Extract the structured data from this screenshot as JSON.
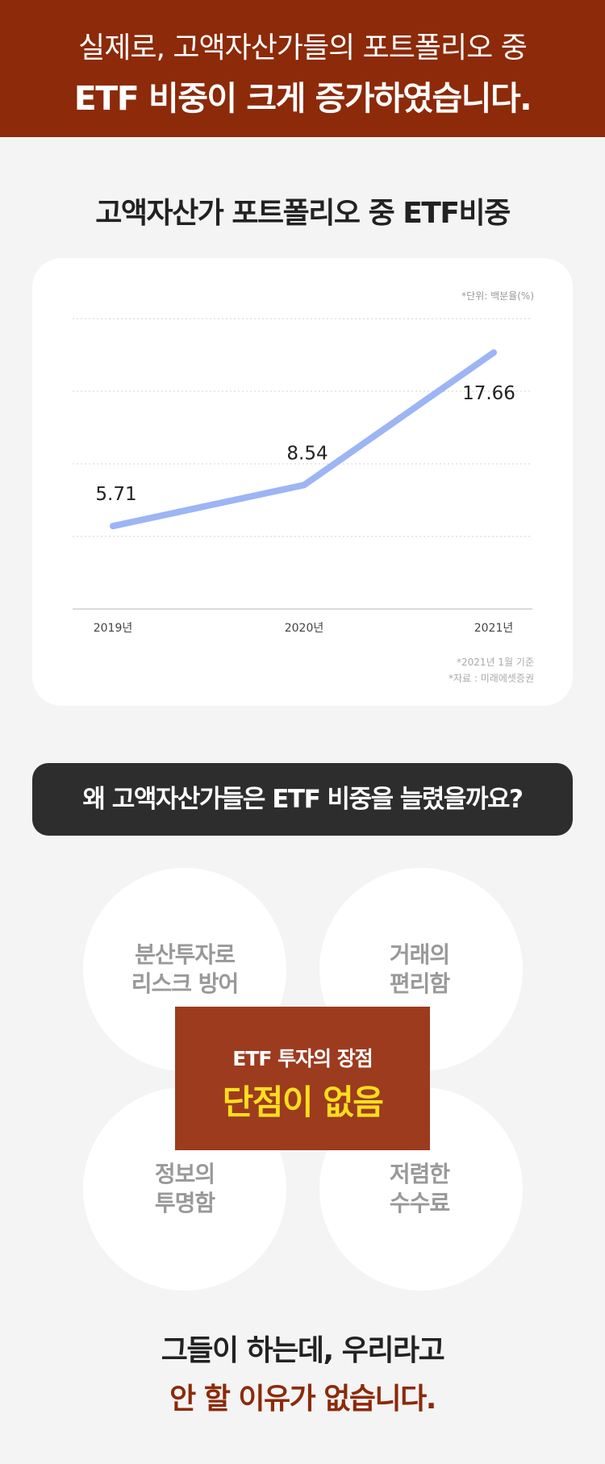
{
  "banner": {
    "line1": "실제로, 고액자산가들의 포트폴리오 중",
    "line2": "ETF 비중이 크게 증가하였습니다."
  },
  "chart_section": {
    "title": "고액자산가 포트폴리오 중 ETF비중",
    "unit_note": "*단위: 백분율(%)",
    "footnote_date": "*2021년 1월 기준",
    "footnote_source": "*자료 : 미래에셋증권"
  },
  "chart_data": {
    "type": "line",
    "title": "고액자산가 포트폴리오 중 ETF비중",
    "categories": [
      "2019년",
      "2020년",
      "2021년"
    ],
    "series": [
      {
        "values": [
          5.71,
          8.54,
          17.66
        ],
        "labels": [
          "5.71",
          "8.54",
          "17.66"
        ]
      }
    ],
    "xlabel": "",
    "ylabel": "",
    "ylim": [
      0,
      20
    ],
    "grid": true,
    "line_color": "#9db4f5",
    "legend": "none"
  },
  "question": "왜 고액자산가들은 ETF 비중을 늘렸을까요?",
  "benefits": {
    "top_left": [
      "분산투자로",
      "리스크 방어"
    ],
    "top_right": [
      "거래의",
      "편리함"
    ],
    "bottom_left": [
      "정보의",
      "투명함"
    ],
    "bottom_right": [
      "저렴한",
      "수수료"
    ]
  },
  "center_box": {
    "line1": "ETF 투자의 장점",
    "line2": "단점이 없음"
  },
  "closing": {
    "line1": "그들이 하는데, 우리라고",
    "line2": "안 할 이유가 없습니다."
  },
  "colors": {
    "brand": "#8c2a09",
    "center_box": "#9d3b1f",
    "highlight": "#ffdf1e",
    "line": "#9db4f5",
    "question_bg": "#2d2d2d"
  }
}
